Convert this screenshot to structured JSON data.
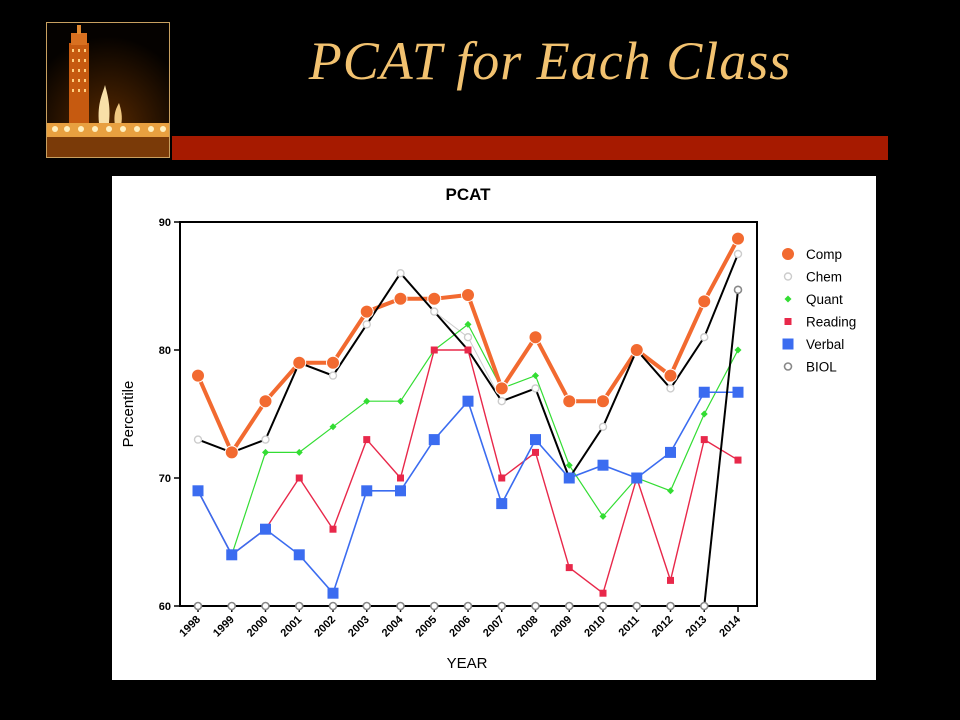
{
  "slide": {
    "title": "PCAT  for Each Class"
  },
  "colors": {
    "background": "#000000",
    "title": "#f2c270",
    "bar": "#a61a00",
    "comp": "#f26a30",
    "chem": "#cccccc",
    "quant": "#33dd33",
    "reading": "#e8284a",
    "verbal": "#3b6cf0",
    "biol": "#888888",
    "biol_line": "#000000"
  },
  "chart_data": {
    "type": "line",
    "title": "PCAT",
    "xlabel": "YEAR",
    "ylabel": "Percentile",
    "ylim": [
      60,
      90
    ],
    "yticks": [
      "60",
      "70",
      "80",
      "90"
    ],
    "categories": [
      "1998",
      "1999",
      "2000",
      "2001",
      "2002",
      "2003",
      "2004",
      "2005",
      "2006",
      "2007",
      "2008",
      "2009",
      "2010",
      "2011",
      "2012",
      "2013",
      "2014"
    ],
    "legend_position": "right",
    "grid": false,
    "series": [
      {
        "name": "Comp",
        "marker": "circle-large",
        "values": [
          78,
          72,
          76,
          79,
          79,
          83,
          84,
          84,
          84.3,
          77,
          81,
          76,
          76,
          80,
          78,
          83.8,
          88.7
        ]
      },
      {
        "name": "Chem",
        "marker": "circle-hollow-light",
        "values": [
          73,
          72,
          73,
          79,
          78,
          82,
          86,
          83,
          81,
          76,
          77,
          70,
          74,
          80,
          77,
          81,
          87.5
        ]
      },
      {
        "name": "Quant",
        "marker": "diamond",
        "values": [
          69,
          64,
          72,
          72,
          74,
          76,
          76,
          80,
          82,
          77,
          78,
          71,
          67,
          70,
          69,
          75,
          80
        ]
      },
      {
        "name": "Reading",
        "marker": "square-small",
        "values": [
          69,
          64,
          66,
          70,
          66,
          73,
          70,
          80,
          80,
          70,
          72,
          63,
          61,
          70,
          62,
          73,
          71.4
        ]
      },
      {
        "name": "Verbal",
        "marker": "square",
        "values": [
          69,
          64,
          66,
          64,
          61,
          69,
          69,
          73,
          76,
          68,
          73,
          70,
          71,
          70,
          72,
          76.7,
          76.7
        ]
      },
      {
        "name": "BIOL",
        "marker": "circle-hollow-dark",
        "values": [
          60,
          60,
          60,
          60,
          60,
          60,
          60,
          60,
          60,
          60,
          60,
          60,
          60,
          60,
          60,
          60,
          84.7
        ]
      }
    ],
    "black_line": [
      73,
      72,
      73,
      79,
      78,
      82,
      86,
      83,
      80,
      76,
      77,
      70,
      74,
      80,
      77,
      81,
      87.5
    ]
  }
}
